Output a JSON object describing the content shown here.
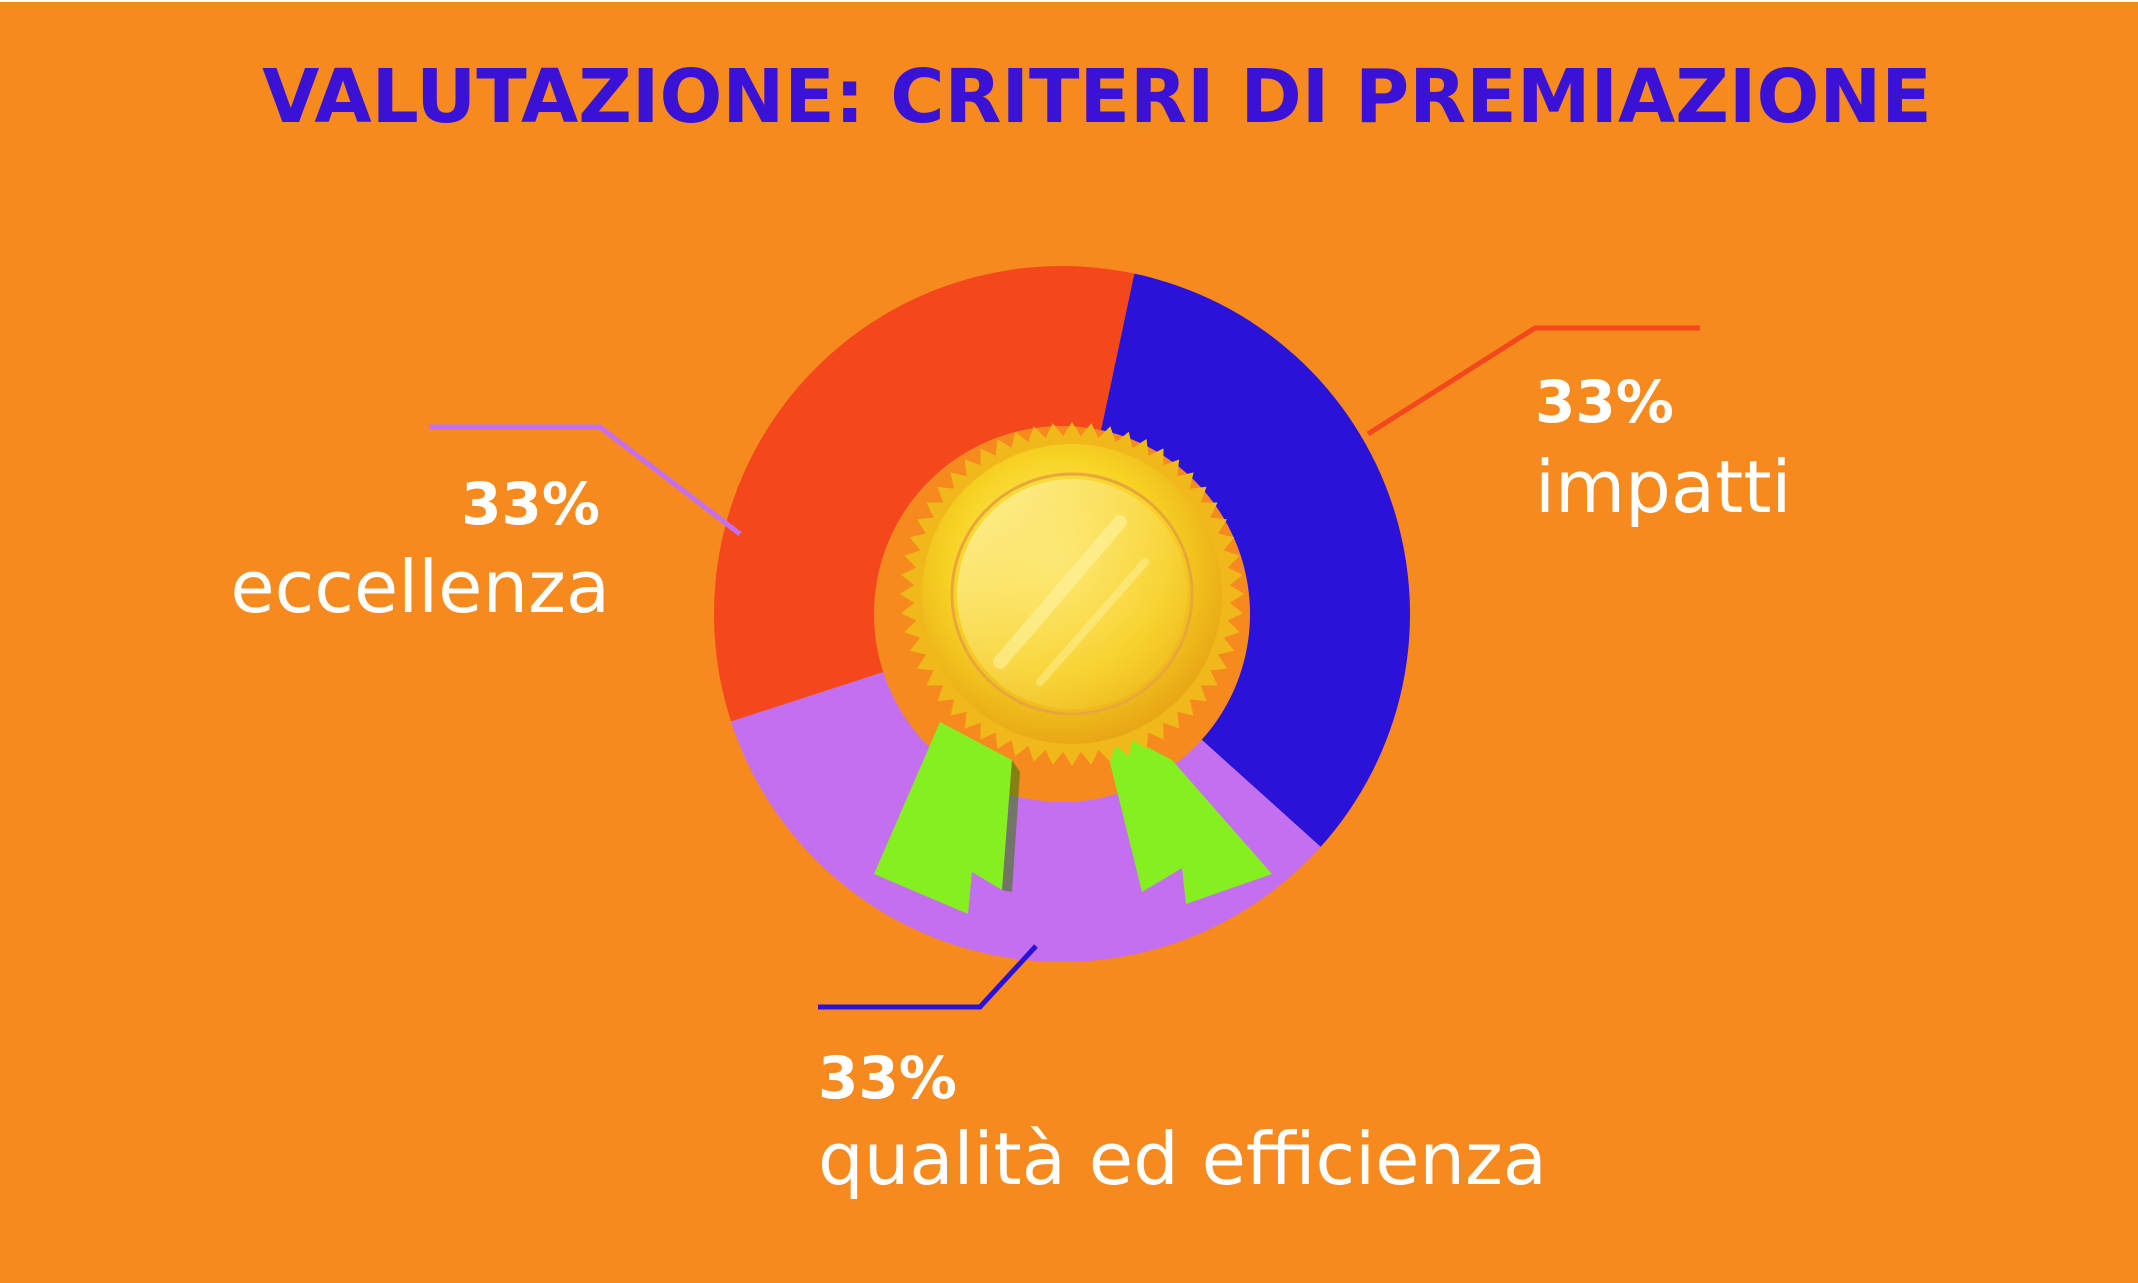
{
  "chart_data": {
    "type": "pie",
    "title": "VALUTAZIONE: CRITERI DI PREMIAZIONE",
    "slices": [
      {
        "label": "impatti",
        "value": 33,
        "value_label": "33%",
        "color": "#f4471c"
      },
      {
        "label": "qualità ed efficienza",
        "value": 33,
        "value_label": "33%",
        "color": "#2a12d8"
      },
      {
        "label": "eccellenza",
        "value": 33,
        "value_label": "33%",
        "color": "#c46ff0"
      }
    ],
    "donut": true,
    "center_icon": "award-medal-icon"
  },
  "colors": {
    "background": "#f68a1e",
    "title": "#3a12d6",
    "text": "#ffffff",
    "medal_gold": "#f7d324",
    "ribbon_green": "#86ef1f"
  }
}
